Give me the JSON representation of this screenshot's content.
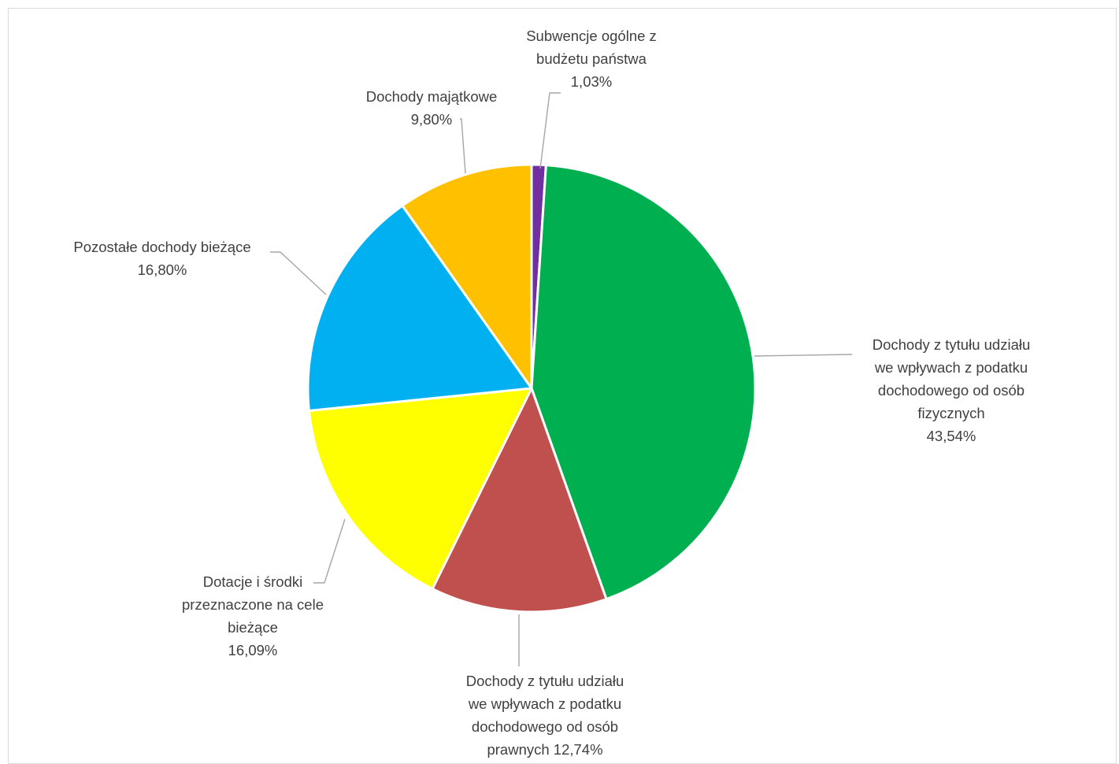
{
  "chart_data": {
    "type": "pie",
    "title": "",
    "legend": "none",
    "categories": [
      "Subwencje ogólne z budżetu państwa",
      "Dochody z tytułu udziału we wpływach z podatku dochodowego od osób fizycznych",
      "Dochody z tytułu udziału we wpływach z podatku dochodowego od osób prawnych",
      "Dotacje i środki przeznaczone na cele bieżące",
      "Pozostałe dochody bieżące",
      "Dochody majątkowe"
    ],
    "values": [
      1.03,
      43.54,
      12.74,
      16.09,
      16.8,
      9.8
    ],
    "unit": "%",
    "colors": [
      "#7030A0",
      "#00B050",
      "#C0504D",
      "#FFFF00",
      "#00B0F0",
      "#FFC000"
    ],
    "labels": [
      {
        "lines": [
          "Subwencje ogólne z",
          "budżetu państwa",
          "1,03%"
        ]
      },
      {
        "lines": [
          "Dochody z tytułu udziału",
          "we wpływach z podatku",
          "dochodowego od osób",
          "fizycznych",
          "43,54%"
        ]
      },
      {
        "lines": [
          "Dochody z tytułu udziału",
          "we wpływach z podatku",
          "dochodowego od osób",
          "prawnych 12,74%"
        ]
      },
      {
        "lines": [
          "Dotacje i środki",
          "przeznaczone na cele",
          "bieżące",
          "16,09%"
        ]
      },
      {
        "lines": [
          "Pozostałe dochody bieżące",
          "16,80%"
        ]
      },
      {
        "lines": [
          "Dochody majątkowe",
          "9,80%"
        ]
      }
    ]
  }
}
